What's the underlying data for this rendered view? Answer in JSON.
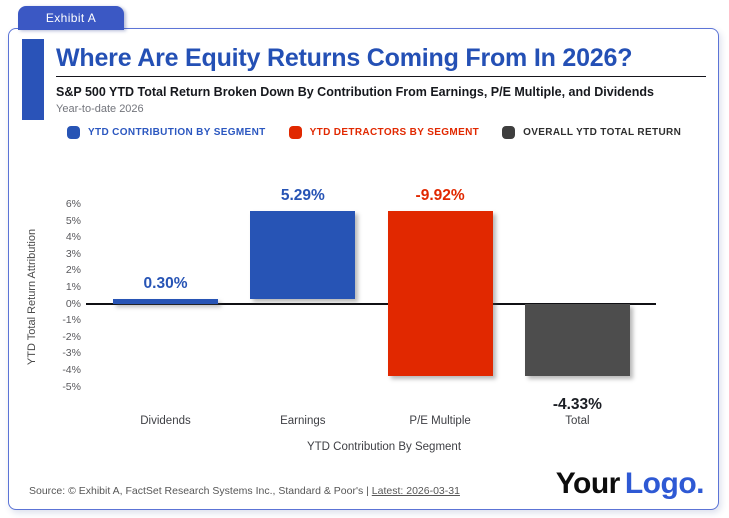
{
  "tab": {
    "label": "Exhibit A"
  },
  "header": {
    "title": "Where Are Equity Returns Coming From In 2026?",
    "subtitle": "S&P 500 YTD Total Return Broken Down By Contribution From Earnings, P/E Multiple, and Dividends",
    "period": "Year-to-date 2026"
  },
  "legend": {
    "items": [
      {
        "label": "YTD CONTRIBUTION BY SEGMENT",
        "swatch": "blue",
        "label_color": "legend_blue"
      },
      {
        "label": "YTD DETRACTORS BY SEGMENT",
        "swatch": "red",
        "label_color": "red"
      },
      {
        "label": "OVERALL YTD TOTAL RETURN",
        "swatch": "gray_dark",
        "label_color": "legend_dark"
      }
    ]
  },
  "chart_data": {
    "type": "bar",
    "subtype": "waterfall",
    "title": "Where Are Equity Returns Coming From In 2026?",
    "xlabel": "YTD Contribution By Segment",
    "ylabel": "YTD Total Return Attribution",
    "ylim": [
      -5,
      6
    ],
    "grid": false,
    "legend_position": "top",
    "categories": [
      "Dividends",
      "Earnings",
      "P/E Multiple",
      "Total"
    ],
    "values": [
      0.3,
      5.29,
      -9.92,
      -4.33
    ],
    "y_ticks": [
      {
        "label": "6%",
        "value": 6
      },
      {
        "label": "5%",
        "value": 5
      },
      {
        "label": "4%",
        "value": 4
      },
      {
        "label": "3%",
        "value": 3
      },
      {
        "label": "2%",
        "value": 2
      },
      {
        "label": "1%",
        "value": 1
      },
      {
        "label": "0%",
        "value": 0
      },
      {
        "label": "-1%",
        "value": -1
      },
      {
        "label": "-2%",
        "value": -2
      },
      {
        "label": "-3%",
        "value": -3
      },
      {
        "label": "-4%",
        "value": -4
      },
      {
        "label": "-5%",
        "value": -5
      }
    ],
    "bars": [
      {
        "category": "Dividends",
        "label": "0.30%",
        "value": 0.3,
        "start": 0,
        "end": 0.3,
        "color": "blue",
        "label_color": "blue"
      },
      {
        "category": "Earnings",
        "label": "5.29%",
        "value": 5.29,
        "start": 0.3,
        "end": 5.59,
        "color": "blue",
        "label_color": "blue"
      },
      {
        "category": "P/E Multiple",
        "label": "-9.92%",
        "value": -9.92,
        "start": 5.59,
        "end": -4.33,
        "color": "red",
        "label_color": "red"
      },
      {
        "category": "Total",
        "label": "-4.33%",
        "value": -4.33,
        "start": 0,
        "end": -4.33,
        "color": "gray",
        "label_color": "dark"
      }
    ]
  },
  "footer": {
    "source_prefix": "Source: © Exhibit A, FactSet Research Systems Inc., Standard & Poor's | ",
    "latest": "Latest: 2026-03-31",
    "logo_part1": "Your",
    "logo_part2": "Logo."
  },
  "colors": {
    "blue": "#2754b5",
    "red": "#e12800",
    "gray": "#4d4d4d",
    "gray_dark": "#3e3e3e",
    "dark": "#1b1e24",
    "legend_blue": "#2b57c0",
    "legend_dark": "#2e2e2e",
    "accent_blue": "#3b58c4",
    "border_blue": "#5c74d6",
    "logo_blue": "#2e59d4"
  }
}
